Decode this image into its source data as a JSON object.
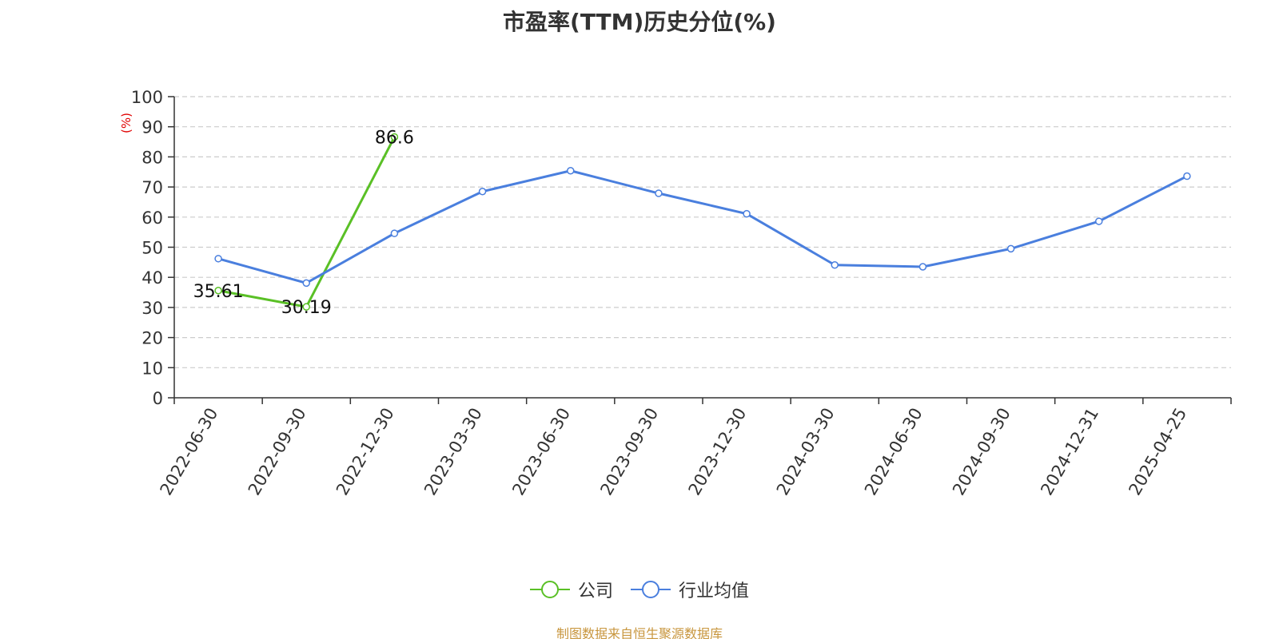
{
  "chart_data": {
    "type": "line",
    "title": "市盈率(TTM)历史分位(%)",
    "ylabel": "(%)",
    "xlabel": "",
    "ylim": [
      0,
      100
    ],
    "yticks": [
      0,
      10,
      20,
      30,
      40,
      50,
      60,
      70,
      80,
      90,
      100
    ],
    "categories": [
      "2022-06-30",
      "2022-09-30",
      "2022-12-30",
      "2023-03-30",
      "2023-06-30",
      "2023-09-30",
      "2023-12-30",
      "2024-03-30",
      "2024-06-30",
      "2024-09-30",
      "2024-12-31",
      "2025-04-25"
    ],
    "grid": true,
    "legend_position": "bottom",
    "series": [
      {
        "name": "公司",
        "color": "#5ac026",
        "values": [
          35.61,
          30.19,
          86.6,
          null,
          null,
          null,
          null,
          null,
          null,
          null,
          null,
          null
        ],
        "data_labels": [
          "35.61",
          "30.19",
          "86.6"
        ]
      },
      {
        "name": "行业均值",
        "color": "#4a7fde",
        "values": [
          46.2,
          38.1,
          54.6,
          68.5,
          75.4,
          67.9,
          61.1,
          44.1,
          43.5,
          49.5,
          58.6,
          73.6
        ]
      }
    ]
  },
  "footer": {
    "source": "制图数据来自恒生聚源数据库"
  }
}
